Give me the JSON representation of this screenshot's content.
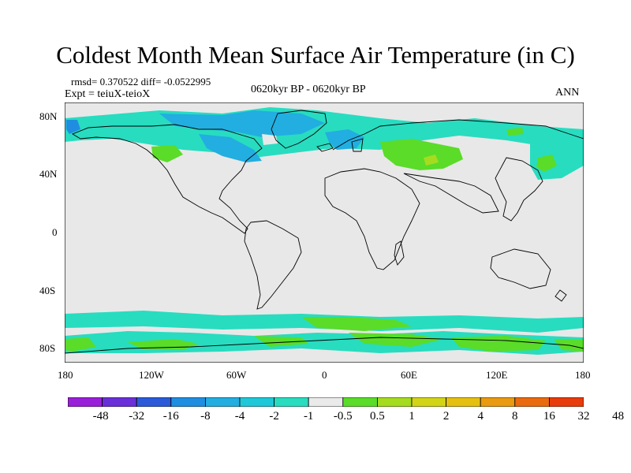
{
  "title": "Coldest Month Mean Surface Air Temperature (in C)",
  "stats": "rmsd= 0.370522  diff= -0.0522995",
  "expt": "Expt = teiuX-teioX",
  "period": "0620kyr BP - 0620kyr BP",
  "season": "ANN",
  "map": {
    "lat_ticks": [
      "80N",
      "40N",
      "0",
      "40S",
      "80S"
    ],
    "lon_ticks": [
      "180",
      "120W",
      "60W",
      "0",
      "60E",
      "120E",
      "180"
    ],
    "background_color": "#e8e8e8"
  },
  "colorbar": {
    "colors": [
      "#9a1fd8",
      "#6a2fd8",
      "#2a5ad8",
      "#1f8ee0",
      "#22aee0",
      "#1ec8d8",
      "#28dcc0",
      "#eaeaea",
      "#5adc28",
      "#a6dc20",
      "#d2d418",
      "#e6c010",
      "#ea9a10",
      "#ea6a10",
      "#e83c0c"
    ],
    "labels": [
      "-48",
      "-32",
      "-16",
      "-8",
      "-4",
      "-2",
      "-1",
      "-0.5",
      "0.5",
      "1",
      "2",
      "4",
      "8",
      "16",
      "32",
      "48"
    ]
  }
}
